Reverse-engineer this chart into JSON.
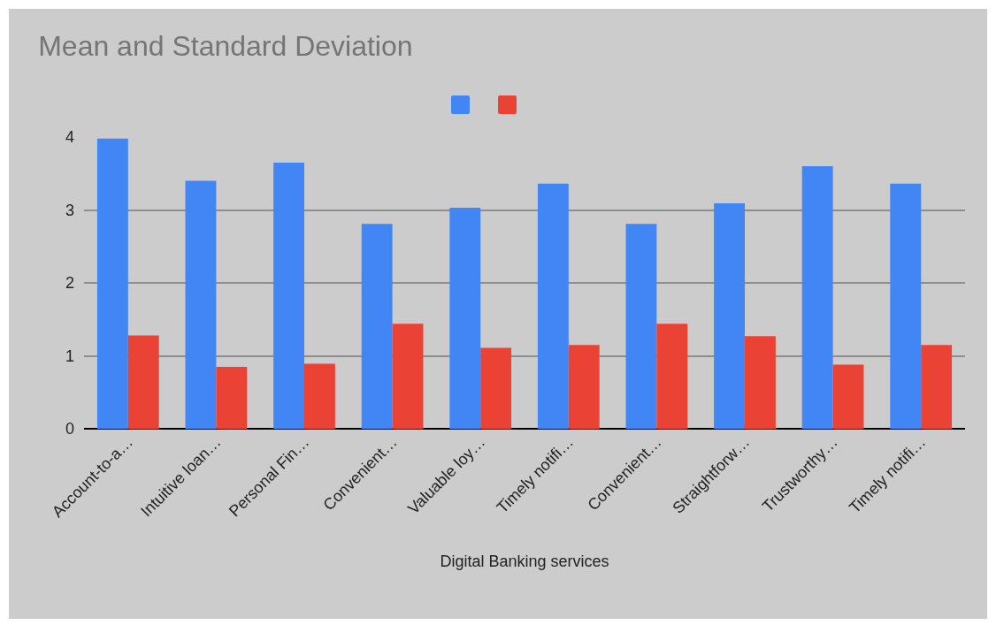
{
  "chart_data": {
    "type": "bar",
    "title": "Mean and Standard Deviation",
    "xlabel": "Digital Banking services",
    "categories": [
      "Account-to-a…",
      "Intuitive loan…",
      "Personal Fin…",
      "Convenient…",
      "Valuable loy…",
      "Timely notifi…",
      "Convenient…",
      "Straightforw…",
      "Trustworthy…",
      "Timely notifi…"
    ],
    "series": [
      {
        "color": "#4285f4",
        "values": [
          3.98,
          3.4,
          3.65,
          2.81,
          3.03,
          3.36,
          2.81,
          3.09,
          3.6,
          3.36
        ]
      },
      {
        "color": "#ea4335",
        "values": [
          1.28,
          0.85,
          0.89,
          1.44,
          1.11,
          1.15,
          1.44,
          1.27,
          0.88,
          1.15
        ]
      }
    ],
    "ylim": [
      0,
      4
    ],
    "yticks": [
      0,
      1,
      2,
      3,
      4
    ],
    "grid": "y"
  }
}
